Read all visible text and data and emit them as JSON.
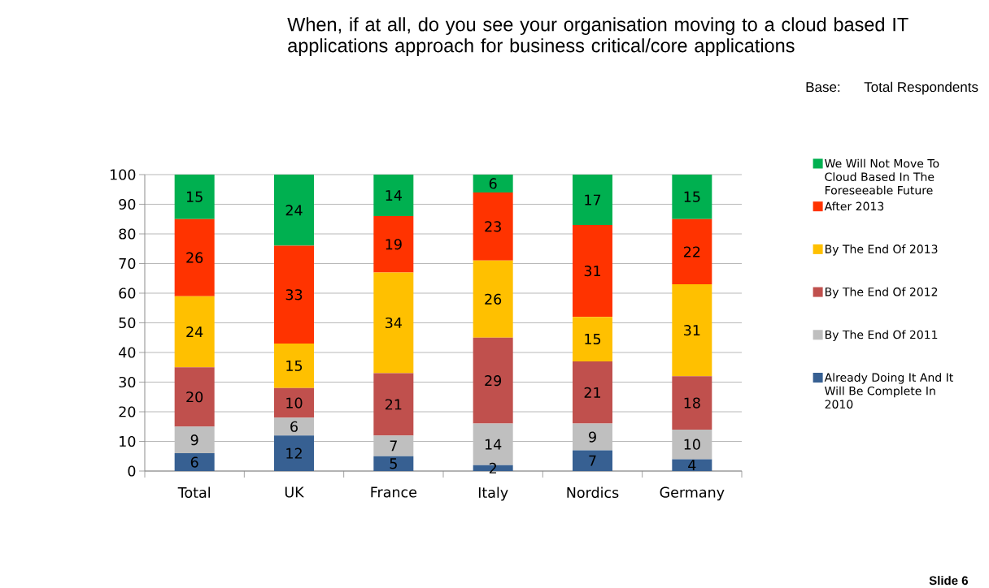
{
  "chart_data": {
    "type": "bar",
    "title": "When, if at all, do you see your organisation moving to a cloud based IT applications approach for business critical/core applications",
    "annotations": [
      "Base:",
      "Total Respondents",
      "Slide 6"
    ],
    "categories": [
      "Total",
      "UK",
      "France",
      "Italy",
      "Nordics",
      "Germany"
    ],
    "series": [
      {
        "name": "Already Doing It And It Will Be Complete In 2010",
        "color": "#376092",
        "values": [
          6,
          12,
          5,
          2,
          7,
          4
        ]
      },
      {
        "name": "By The End Of 2011",
        "color": "#bfbfbf",
        "values": [
          9,
          6,
          7,
          14,
          9,
          10
        ]
      },
      {
        "name": "By The End Of 2012",
        "color": "#c0504d",
        "values": [
          20,
          10,
          21,
          29,
          21,
          18
        ]
      },
      {
        "name": "By The End Of 2013",
        "color": "#ffc000",
        "values": [
          24,
          15,
          34,
          26,
          15,
          31
        ]
      },
      {
        "name": "After 2013",
        "color": "#ff3300",
        "values": [
          26,
          33,
          19,
          23,
          31,
          22
        ]
      },
      {
        "name": "We Will Not Move To Cloud Based In The Foreseeable Future",
        "color": "#00b050",
        "values": [
          15,
          24,
          14,
          6,
          17,
          15
        ]
      }
    ],
    "stacked": true,
    "ylim": [
      0,
      100
    ],
    "yticks": [
      0,
      10,
      20,
      30,
      40,
      50,
      60,
      70,
      80,
      90,
      100
    ],
    "grid": "y",
    "legend": "right",
    "data_labels": true
  }
}
